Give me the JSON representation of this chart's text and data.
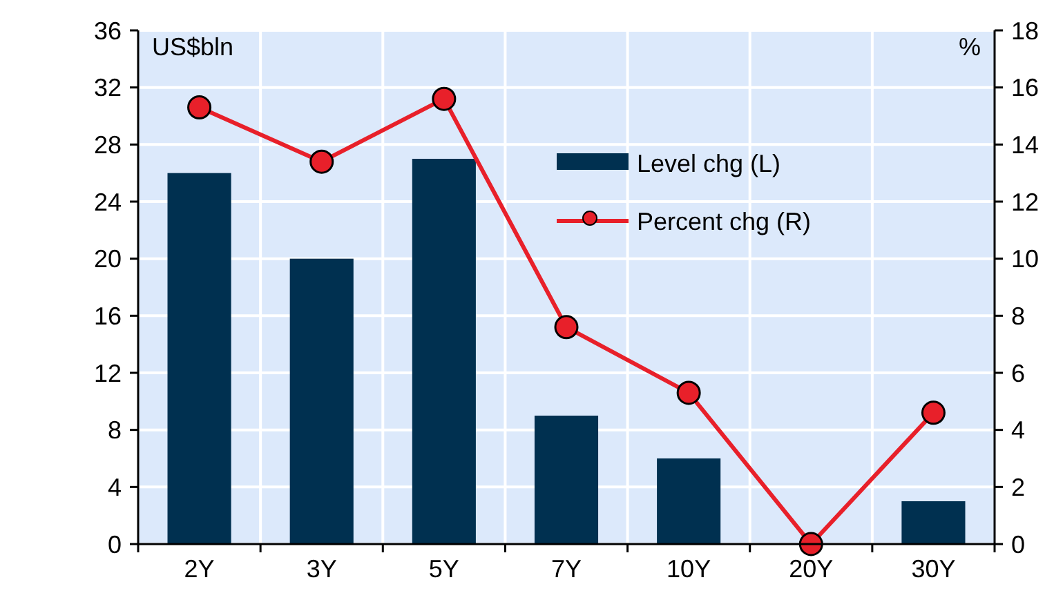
{
  "chart_data": {
    "type": "bar",
    "ylabel": "US$bln",
    "y2label": "%",
    "categories": [
      "2Y",
      "3Y",
      "5Y",
      "7Y",
      "10Y",
      "20Y",
      "30Y"
    ],
    "series": [
      {
        "name": "Level chg (L)",
        "color": "#003050",
        "values": [
          26,
          20,
          27,
          9,
          6,
          0,
          3
        ]
      },
      {
        "name": "Percent chg (R)",
        "type": "line",
        "axis": "y2",
        "color": "#e8202a",
        "values": [
          15.3,
          13.4,
          15.6,
          7.6,
          5.3,
          0,
          4.6
        ]
      }
    ],
    "ylim": [
      0,
      36
    ],
    "yticks": [
      0,
      4,
      8,
      12,
      16,
      20,
      24,
      28,
      32,
      36
    ],
    "y2lim": [
      0,
      18
    ],
    "y2ticks": [
      0,
      2,
      4,
      6,
      8,
      10,
      12,
      14,
      16,
      18
    ],
    "grid": true,
    "legend": "top right",
    "marker": "circle",
    "line_style": "solid"
  }
}
